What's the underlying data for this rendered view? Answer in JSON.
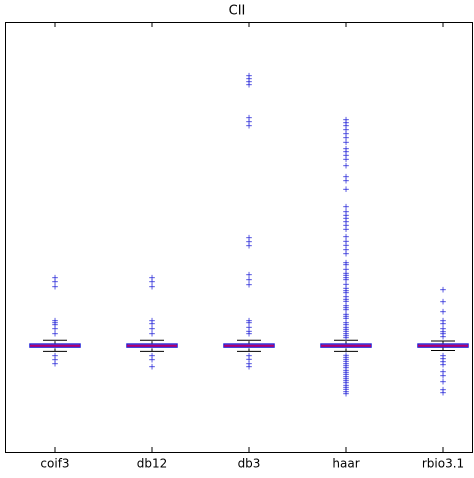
{
  "chart_data": {
    "type": "box",
    "title": "CII",
    "categories": [
      "coif3",
      "db12",
      "db3",
      "haar",
      "rbio3.1"
    ],
    "ylim": [
      0,
      100
    ],
    "box_color": "#1f1fd6",
    "median_color": "#b5006e",
    "whisker_color": "#000000",
    "flier_color": "#1f1fd6",
    "boxes": [
      {
        "whislo": 23.4,
        "q1": 24.4,
        "median": 24.7,
        "q3": 25.1,
        "whishi": 26.0,
        "fliers": [
          40.5,
          39.5,
          38.4,
          30.5,
          30,
          29.5,
          28.6,
          27.4,
          22.3,
          21.4,
          20.5
        ]
      },
      {
        "whislo": 23.4,
        "q1": 24.4,
        "median": 24.7,
        "q3": 25.1,
        "whishi": 26.0,
        "fliers": [
          40.5,
          39.5,
          38.4,
          30.5,
          29.8,
          28.6,
          27.4,
          22.3,
          21.4,
          19.8
        ]
      },
      {
        "whislo": 23.4,
        "q1": 24.4,
        "median": 24.7,
        "q3": 25.1,
        "whishi": 26.0,
        "fliers": [
          87.4,
          86.7,
          86,
          85.3,
          77.7,
          76.7,
          75.8,
          49.8,
          48.8,
          47.9,
          41.2,
          40,
          38.8,
          30.5,
          30,
          29,
          28,
          27.4,
          22.3,
          21.5,
          20.5,
          19.8
        ]
      },
      {
        "whislo": 23.4,
        "q1": 24.4,
        "median": 24.7,
        "q3": 25.1,
        "whishi": 26.0,
        "fliers": [
          77.2,
          76.5,
          75.8,
          74.9,
          74,
          73,
          72,
          70.5,
          69.8,
          69,
          68,
          66.5,
          64,
          63,
          61,
          57,
          55.8,
          55,
          54.3,
          53.5,
          52.7,
          51.8,
          50,
          49,
          48,
          47,
          46,
          44,
          43.5,
          42.5,
          41.5,
          41,
          40.5,
          40,
          39,
          38,
          37.5,
          37,
          36,
          35.5,
          35,
          34,
          33.5,
          33,
          32,
          31.5,
          31,
          30,
          29.5,
          29,
          28.5,
          28,
          27.5,
          27,
          26.5,
          22.5,
          22,
          21.5,
          21,
          20.5,
          20,
          19.5,
          19,
          18.5,
          18,
          17.5,
          17,
          16.5,
          16,
          15.5,
          15,
          14.5,
          14,
          13.5
        ]
      },
      {
        "whislo": 23.6,
        "q1": 24.4,
        "median": 24.7,
        "q3": 25.1,
        "whishi": 25.8,
        "fliers": [
          37.7,
          34.9,
          32.6,
          30.5,
          29.8,
          28.6,
          27.9,
          27.4,
          26.7,
          22.3,
          21.6,
          20.9,
          20.2,
          18.6,
          17.7,
          16.3,
          14.4,
          13.7
        ]
      }
    ]
  }
}
